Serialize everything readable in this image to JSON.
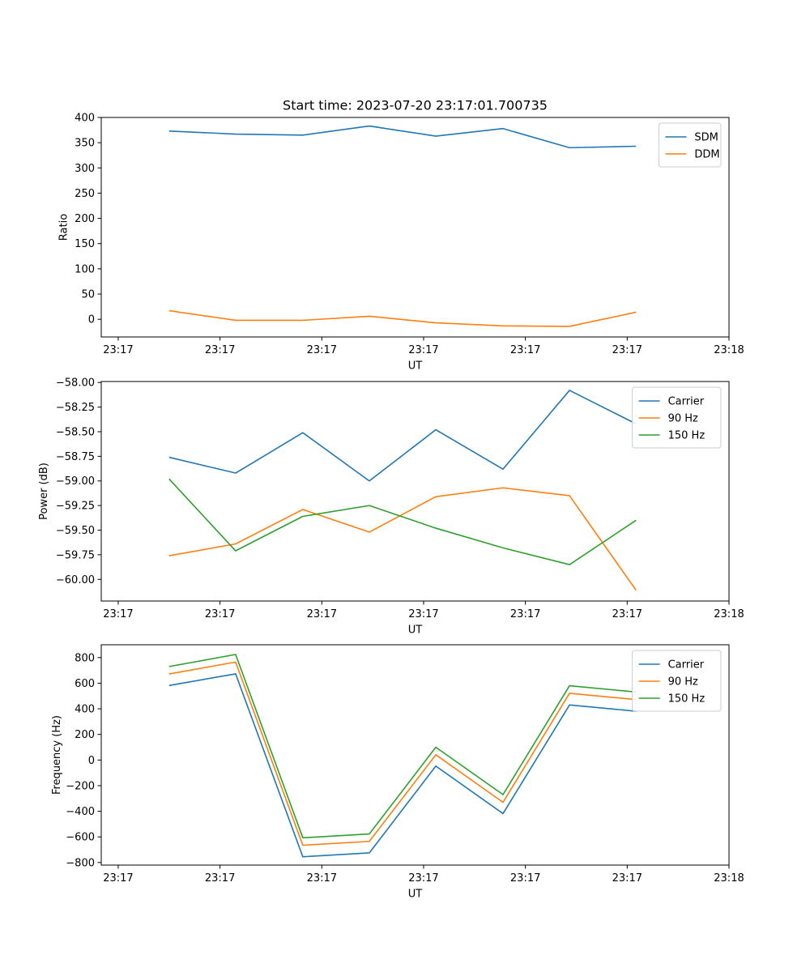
{
  "title": "Start time: 2023-07-20 23:17:01.700735",
  "colors": {
    "c0": "#1f77b4",
    "c1": "#ff7f0e",
    "c2": "#2ca02c"
  },
  "chart_data": [
    {
      "type": "line",
      "title": "Start time: 2023-07-20 23:17:01.700735",
      "xlabel": "UT",
      "ylabel": "Ratio",
      "xlim": [
        -0.25,
        9.0
      ],
      "ylim": [
        -35,
        400
      ],
      "xticks": [
        0,
        1.5,
        3.0,
        4.5,
        6.0,
        7.5,
        9.0
      ],
      "xticklabels": [
        "23:17",
        "23:17",
        "23:17",
        "23:17",
        "23:17",
        "23:17",
        "23:18"
      ],
      "yticks": [
        0,
        50,
        100,
        150,
        200,
        250,
        300,
        350,
        400
      ],
      "yticklabels": [
        "0",
        "50",
        "100",
        "150",
        "200",
        "250",
        "300",
        "350",
        "400"
      ],
      "legend": "top-right",
      "x": [
        0.75,
        1.73,
        2.72,
        3.7,
        4.68,
        5.67,
        6.65,
        7.63
      ],
      "series": [
        {
          "name": "SDM",
          "color": "#1f77b4",
          "values": [
            373,
            367,
            365,
            383,
            363,
            378,
            340,
            343
          ]
        },
        {
          "name": "DDM",
          "color": "#ff7f0e",
          "values": [
            17,
            -2,
            -2,
            6,
            -7,
            -13,
            -14,
            14
          ]
        }
      ]
    },
    {
      "type": "line",
      "title": "",
      "xlabel": "UT",
      "ylabel": "Power (dB)",
      "xlim": [
        -0.25,
        9.0
      ],
      "ylim": [
        -60.22,
        -57.99
      ],
      "xticks": [
        0,
        1.5,
        3.0,
        4.5,
        6.0,
        7.5,
        9.0
      ],
      "xticklabels": [
        "23:17",
        "23:17",
        "23:17",
        "23:17",
        "23:17",
        "23:17",
        "23:18"
      ],
      "yticks": [
        -60.0,
        -59.75,
        -59.5,
        -59.25,
        -59.0,
        -58.75,
        -58.5,
        -58.25,
        -58.0
      ],
      "yticklabels": [
        "−60.00",
        "−59.75",
        "−59.50",
        "−59.25",
        "−59.00",
        "−58.75",
        "−58.50",
        "−58.25",
        "−58.00"
      ],
      "legend": "top-right",
      "x": [
        0.75,
        1.73,
        2.72,
        3.7,
        4.68,
        5.67,
        6.65,
        7.63
      ],
      "series": [
        {
          "name": "Carrier",
          "color": "#1f77b4",
          "values": [
            -58.76,
            -58.92,
            -58.51,
            -59.0,
            -58.48,
            -58.88,
            -58.08,
            -58.42
          ]
        },
        {
          "name": "90 Hz",
          "color": "#ff7f0e",
          "values": [
            -59.76,
            -59.64,
            -59.29,
            -59.52,
            -59.16,
            -59.07,
            -59.15,
            -60.11
          ]
        },
        {
          "name": "150 Hz",
          "color": "#2ca02c",
          "values": [
            -58.98,
            -59.71,
            -59.36,
            -59.25,
            -59.48,
            -59.68,
            -59.85,
            -59.4
          ]
        }
      ]
    },
    {
      "type": "line",
      "title": "",
      "xlabel": "UT",
      "ylabel": "Frequency (Hz)",
      "xlim": [
        -0.25,
        9.0
      ],
      "ylim": [
        -820,
        900
      ],
      "xticks": [
        0,
        1.5,
        3.0,
        4.5,
        6.0,
        7.5,
        9.0
      ],
      "xticklabels": [
        "23:17",
        "23:17",
        "23:17",
        "23:17",
        "23:17",
        "23:17",
        "23:18"
      ],
      "yticks": [
        -800,
        -600,
        -400,
        -200,
        0,
        200,
        400,
        600,
        800
      ],
      "yticklabels": [
        "−800",
        "−600",
        "−400",
        "−200",
        "0",
        "200",
        "400",
        "600",
        "800"
      ],
      "legend": "top-right",
      "x": [
        0.75,
        1.73,
        2.72,
        3.7,
        4.68,
        5.67,
        6.65,
        7.63
      ],
      "series": [
        {
          "name": "Carrier",
          "color": "#1f77b4",
          "values": [
            582,
            673,
            -755,
            -725,
            -47,
            -418,
            430,
            381
          ]
        },
        {
          "name": "90 Hz",
          "color": "#ff7f0e",
          "values": [
            672,
            765,
            -665,
            -635,
            41,
            -330,
            521,
            472
          ]
        },
        {
          "name": "150 Hz",
          "color": "#2ca02c",
          "values": [
            730,
            824,
            -607,
            -577,
            100,
            -270,
            580,
            531
          ]
        }
      ]
    }
  ]
}
